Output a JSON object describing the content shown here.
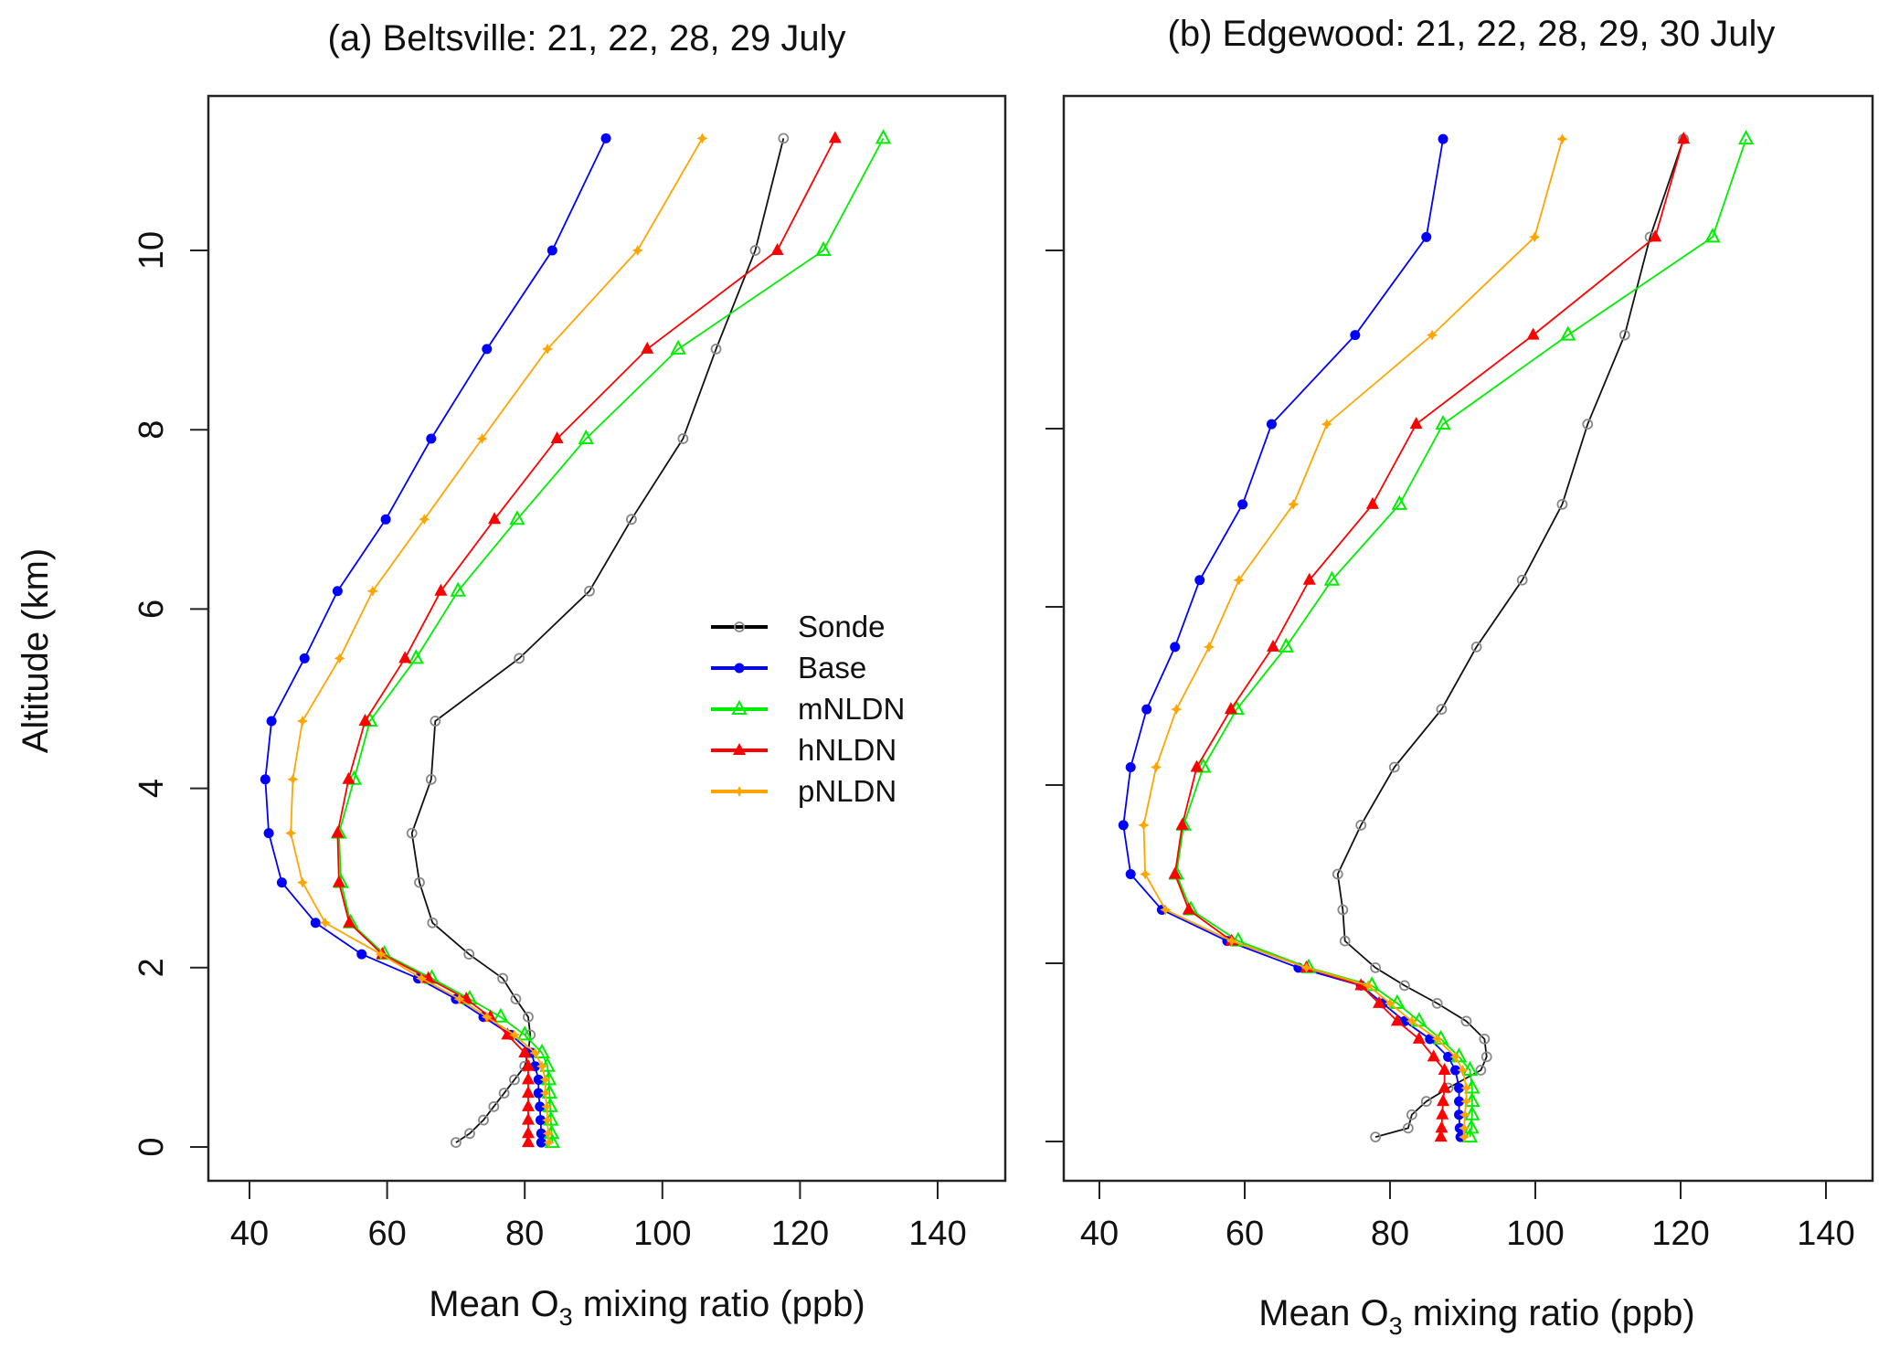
{
  "chart_data": [
    {
      "type": "line",
      "title": "(a) Beltsville: 21, 22, 28, 29 July",
      "xlabel": "Mean O3 mixing ratio (ppb)",
      "xlabel_main": "Mean O",
      "xlabel_sub": "3",
      "xlabel_rest": " mixing ratio  (ppb)",
      "ylabel": "Altitude (km)",
      "xlim": [
        34,
        150
      ],
      "ylim": [
        -0.4,
        11.8
      ],
      "xticks": [
        40,
        60,
        80,
        100,
        120,
        140
      ],
      "yticks": [
        0,
        2,
        4,
        6,
        8,
        10
      ],
      "grid": false,
      "legend_position": "center-right",
      "altitude_km": [
        11.25,
        10,
        8.9,
        7.9,
        7.0,
        6.2,
        5.45,
        4.75,
        4.1,
        3.5,
        2.95,
        2.5,
        2.15,
        1.88,
        1.65,
        1.45,
        1.25,
        1.05,
        0.9,
        0.75,
        0.6,
        0.45,
        0.3,
        0.15,
        0.05
      ],
      "series": [
        {
          "name": "Sonde",
          "color": "#000000",
          "marker": "open-circle",
          "values": [
            117.6,
            113.5,
            107.8,
            103,
            95.5,
            89.4,
            79.2,
            67,
            66.4,
            63.6,
            64.7,
            66.6,
            71.9,
            76.8,
            78.7,
            80.5,
            80.8,
            80.5,
            80,
            78.5,
            77,
            75.5,
            74,
            72,
            70
          ]
        },
        {
          "name": "Base",
          "color": "#0000ff",
          "marker": "filled-circle",
          "values": [
            91.8,
            84,
            74.5,
            66.4,
            59.8,
            52.8,
            48,
            43.2,
            42.3,
            42.8,
            44.7,
            49.6,
            56.3,
            64.5,
            70,
            74,
            78,
            81,
            81.5,
            82,
            82,
            82.2,
            82.3,
            82.4,
            82.4
          ]
        },
        {
          "name": "mNLDN",
          "color": "#00ee00",
          "marker": "open-triangle",
          "values": [
            132.1,
            123.4,
            102.3,
            88.9,
            78.9,
            70.3,
            64.2,
            57.5,
            55.2,
            53,
            53.3,
            54.7,
            59.6,
            66.5,
            72,
            76.5,
            80,
            82.5,
            83.3,
            83.5,
            83.6,
            83.7,
            83.8,
            83.9,
            84
          ]
        },
        {
          "name": "hNLDN",
          "color": "#ff0000",
          "marker": "filled-triangle",
          "values": [
            125.1,
            116.7,
            97.8,
            84.7,
            75.6,
            67.8,
            62.6,
            56.8,
            54.4,
            52.8,
            53,
            54.5,
            59.3,
            66,
            71.5,
            75,
            77.5,
            80,
            80.5,
            80.5,
            80.5,
            80.5,
            80.5,
            80.5,
            80.5
          ]
        },
        {
          "name": "pNLDN",
          "color": "#ffa500",
          "marker": "star",
          "values": [
            105.8,
            96.4,
            83.3,
            73.8,
            65.4,
            57.9,
            53.1,
            47.7,
            46.3,
            46,
            47.7,
            51,
            59.1,
            65,
            70.5,
            74.5,
            78.5,
            81.5,
            82.5,
            83,
            83,
            83.2,
            83.3,
            83.4,
            83.5
          ]
        }
      ]
    },
    {
      "type": "line",
      "title": "(b) Edgewood:  21, 22, 28, 29, 30 July",
      "xlabel": "Mean O3 mixing ratio (ppb)",
      "xlabel_main": "Mean O",
      "xlabel_sub": "3",
      "xlabel_rest": " mixing ratio  (ppb)",
      "ylabel": "",
      "xlim": [
        34,
        150
      ],
      "ylim": [
        -0.4,
        11.8
      ],
      "xticks": [
        40,
        60,
        80,
        100,
        120,
        140
      ],
      "yticks": [
        0,
        2,
        4,
        6,
        8,
        10
      ],
      "grid": false,
      "altitude_km": [
        11.25,
        10.15,
        9.05,
        8.05,
        7.15,
        6.3,
        5.55,
        4.85,
        4.2,
        3.55,
        3.0,
        2.6,
        2.25,
        1.95,
        1.75,
        1.55,
        1.35,
        1.15,
        0.95,
        0.8,
        0.6,
        0.45,
        0.3,
        0.15,
        0.05
      ],
      "series": [
        {
          "name": "Sonde",
          "color": "#000000",
          "marker": "open-circle",
          "values": [
            120.4,
            115.8,
            112.3,
            107.2,
            103.7,
            98.2,
            91.9,
            87.1,
            80.6,
            76,
            72.8,
            73.5,
            73.8,
            78,
            82,
            86.5,
            90.5,
            93,
            93.3,
            92.5,
            88,
            85,
            83,
            82.5,
            78
          ]
        },
        {
          "name": "Base",
          "color": "#0000ff",
          "marker": "filled-circle",
          "values": [
            87.3,
            85,
            75.2,
            63.7,
            59.7,
            53.8,
            50.4,
            46.5,
            44.3,
            43.3,
            44.3,
            48.6,
            57.6,
            67.4,
            76,
            79,
            82,
            85.5,
            88,
            89,
            89.5,
            89.5,
            89.5,
            89.6,
            89.7
          ]
        },
        {
          "name": "mNLDN",
          "color": "#00ee00",
          "marker": "open-triangle",
          "values": [
            129,
            124.4,
            104.5,
            87.3,
            81.3,
            72,
            65.7,
            58.9,
            54.3,
            51.6,
            50.6,
            52.6,
            59.1,
            68.8,
            77.5,
            81,
            84,
            87,
            89.5,
            91,
            91.3,
            91.3,
            91.3,
            91.2,
            91
          ]
        },
        {
          "name": "hNLDN",
          "color": "#ff0000",
          "marker": "filled-triangle",
          "values": [
            120.4,
            116.5,
            99.7,
            83.6,
            77.6,
            68.9,
            63.9,
            58.1,
            53.4,
            51.4,
            50.4,
            52.3,
            58.2,
            68.5,
            76,
            78.5,
            81,
            84,
            86,
            87.5,
            87.5,
            87.3,
            87.2,
            87.1,
            87
          ]
        },
        {
          "name": "pNLDN",
          "color": "#ffa500",
          "marker": "star",
          "values": [
            103.7,
            99.9,
            85.8,
            71.3,
            66.7,
            59.2,
            55.1,
            50.6,
            47.8,
            46.1,
            46.3,
            49.1,
            58.2,
            68.5,
            77,
            80,
            83,
            86.5,
            89,
            90,
            90.5,
            90.5,
            90.3,
            90.2,
            90.2
          ]
        }
      ]
    }
  ]
}
